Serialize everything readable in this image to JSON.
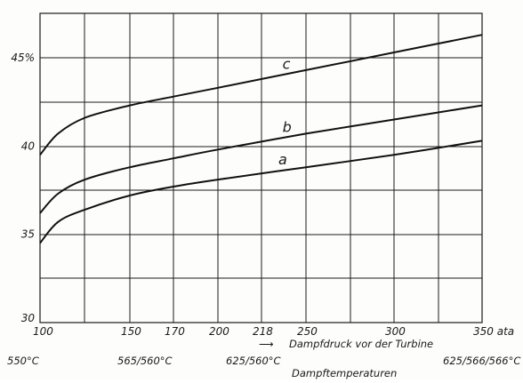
{
  "chart_data": {
    "type": "line",
    "title": "",
    "xlabel": "Dampfdruck vor der Turbine",
    "xunit": "ata",
    "ylabel": "",
    "yunit": "%",
    "xlim": [
      100,
      350
    ],
    "ylim": [
      30,
      48
    ],
    "grid": true,
    "x_ticks": [
      100,
      150,
      170,
      200,
      218,
      250,
      300,
      350
    ],
    "x_tick_labels": [
      "100",
      "150",
      "170",
      "200",
      "218",
      "250",
      "300",
      "350"
    ],
    "y_ticks": [
      30,
      35,
      40,
      45
    ],
    "y_tick_labels": [
      "30",
      "35",
      "40",
      "45"
    ],
    "series": [
      {
        "name": "a",
        "x": [
          100,
          110,
          125,
          150,
          170,
          200,
          250,
          300,
          350
        ],
        "y": [
          34.5,
          35.7,
          36.4,
          37.2,
          37.7,
          38.1,
          38.8,
          39.5,
          40.3
        ]
      },
      {
        "name": "b",
        "x": [
          100,
          110,
          125,
          150,
          170,
          200,
          250,
          300,
          350
        ],
        "y": [
          36.2,
          37.3,
          38.1,
          38.8,
          39.3,
          39.8,
          40.7,
          41.5,
          42.3
        ]
      },
      {
        "name": "c",
        "x": [
          100,
          110,
          125,
          150,
          170,
          200,
          250,
          300,
          350
        ],
        "y": [
          39.5,
          40.7,
          41.6,
          42.3,
          42.8,
          43.3,
          44.3,
          45.3,
          46.3
        ]
      }
    ],
    "temperature_labels": [
      {
        "x": 100,
        "label": "550°C"
      },
      {
        "x": 170,
        "label": "565/560°C"
      },
      {
        "x": 218,
        "label": "625/560°C"
      },
      {
        "x": 350,
        "label": "625/566/566°C"
      }
    ],
    "temperature_caption": "Dampftemperaturen",
    "y_top_label": "45%",
    "x_end_label": "350 ata",
    "arrow_glyph": "⟶"
  }
}
